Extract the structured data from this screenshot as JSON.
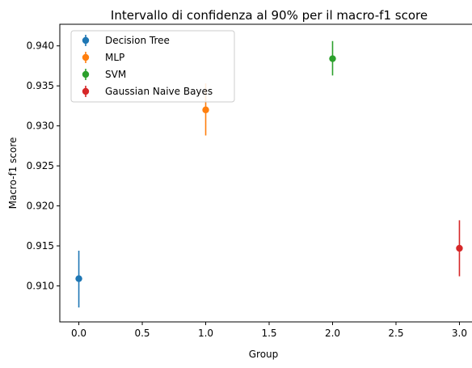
{
  "chart_data": {
    "type": "scatter",
    "title": "Intervallo di confidenza al 90% per il macro-f1 score",
    "xlabel": "Group",
    "ylabel": "Macro-f1 score",
    "xlim": [
      -0.15,
      3.15
    ],
    "ylim": [
      0.9055,
      0.9427
    ],
    "xticks": [
      0.0,
      0.5,
      1.0,
      1.5,
      2.0,
      2.5,
      3.0
    ],
    "xtick_labels": [
      "0.0",
      "0.5",
      "1.0",
      "1.5",
      "2.0",
      "2.5",
      "3.0"
    ],
    "yticks": [
      0.91,
      0.915,
      0.92,
      0.925,
      0.93,
      0.935,
      0.94
    ],
    "ytick_labels": [
      "0.910",
      "0.915",
      "0.920",
      "0.925",
      "0.930",
      "0.935",
      "0.940"
    ],
    "grid": false,
    "legend_position": "top-left",
    "series": [
      {
        "name": "Decision Tree",
        "color": "#1f77b4",
        "x": 0,
        "y": 0.9109,
        "ci": [
          0.9073,
          0.9144
        ]
      },
      {
        "name": "MLP",
        "color": "#ff7f0e",
        "x": 1,
        "y": 0.932,
        "ci": [
          0.9288,
          0.9353
        ]
      },
      {
        "name": "SVM",
        "color": "#2ca02c",
        "x": 2,
        "y": 0.9384,
        "ci": [
          0.9363,
          0.9406
        ]
      },
      {
        "name": "Gaussian Naive Bayes",
        "color": "#d62728",
        "x": 3,
        "y": 0.9147,
        "ci": [
          0.9112,
          0.9182
        ]
      }
    ]
  }
}
